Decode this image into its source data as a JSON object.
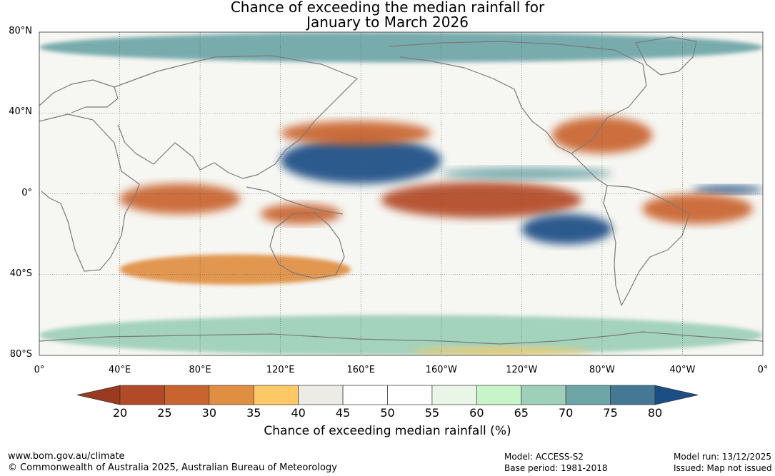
{
  "title": {
    "line1": "Chance of exceeding the median rainfall for",
    "line2": "January to March 2026"
  },
  "map": {
    "lat_labels": [
      "80°N",
      "40°N",
      "0°",
      "40°S",
      "80°S"
    ],
    "lat_values": [
      80,
      40,
      0,
      -40,
      -80
    ],
    "lon_labels": [
      "0°",
      "40°E",
      "80°E",
      "120°E",
      "160°E",
      "160°W",
      "120°W",
      "80°W",
      "40°W",
      "0°"
    ],
    "lon_values": [
      0,
      40,
      80,
      120,
      160,
      200,
      240,
      280,
      320,
      360
    ],
    "lon_range": [
      0,
      360
    ],
    "lat_range": [
      -80,
      80
    ],
    "gridlines": true,
    "regions": [
      {
        "label": "Central-eastern Pacific dry anomaly",
        "lon": [
          170,
          270
        ],
        "lat": [
          -12,
          6
        ],
        "value": 20
      },
      {
        "label": "North-west Pacific wet anomaly",
        "lon": [
          120,
          200
        ],
        "lat": [
          5,
          28
        ],
        "value": 80
      },
      {
        "label": "South-east Pacific wet anomaly",
        "lon": [
          240,
          285
        ],
        "lat": [
          -25,
          -10
        ],
        "value": 80
      },
      {
        "label": "Equatorial Atlantic wet anomaly",
        "lon": [
          325,
          360
        ],
        "lat": [
          0,
          4
        ],
        "value": 80
      },
      {
        "label": "Western Indian Ocean dry anomaly",
        "lon": [
          40,
          100
        ],
        "lat": [
          -10,
          5
        ],
        "value": 25
      },
      {
        "label": "Maritime Continent dry anomaly",
        "lon": [
          110,
          150
        ],
        "lat": [
          -15,
          -5
        ],
        "value": 25
      },
      {
        "label": "Northern Brazil dry anomaly",
        "lon": [
          300,
          355
        ],
        "lat": [
          -15,
          0
        ],
        "value": 25
      },
      {
        "label": "North Pacific dry band",
        "lon": [
          120,
          195
        ],
        "lat": [
          24,
          36
        ],
        "value": 25
      },
      {
        "label": "Gulf of Mexico dry anomaly",
        "lon": [
          255,
          305
        ],
        "lat": [
          20,
          38
        ],
        "value": 25
      },
      {
        "label": "Southern Indian Ocean dry band",
        "lon": [
          40,
          155
        ],
        "lat": [
          -45,
          -30
        ],
        "value": 30
      },
      {
        "label": "Southern Ocean wet band",
        "lon": [
          0,
          360
        ],
        "lat": [
          -80,
          -60
        ],
        "value": 65
      },
      {
        "label": "Arctic wet anomaly",
        "lon": [
          0,
          360
        ],
        "lat": [
          65,
          80
        ],
        "value": 70
      },
      {
        "label": "Eastern Pacific ITCZ wet band",
        "lon": [
          200,
          285
        ],
        "lat": [
          7,
          13
        ],
        "value": 70
      },
      {
        "label": "Antarctic coast dry anomaly",
        "lon": [
          185,
          275
        ],
        "lat": [
          -80,
          -76
        ],
        "value": 35
      }
    ]
  },
  "colorbar": {
    "ticks": [
      "20",
      "25",
      "30",
      "35",
      "40",
      "45",
      "50",
      "55",
      "60",
      "65",
      "70",
      "75",
      "80"
    ],
    "colors": [
      "#9a3a1f",
      "#b24a27",
      "#c9632f",
      "#e08f42",
      "#fdc966",
      "#ecebe6",
      "#ffffff",
      "#ffffff",
      "#e8f5e7",
      "#c7f5c7",
      "#9dcfb9",
      "#6ea5a7",
      "#457895",
      "#1a4e85"
    ],
    "label": "Chance of exceeding median rainfall (%)"
  },
  "footer": {
    "website": "www.bom.gov.au/climate",
    "copyright": "© Commonwealth of Australia 2025, Australian Bureau of Meteorology",
    "model": "Model: ACCESS-S2",
    "base_period": "Base period: 1981-2018",
    "model_run": "Model run: 13/12/2025",
    "issued": "Issued: Map not issued"
  }
}
